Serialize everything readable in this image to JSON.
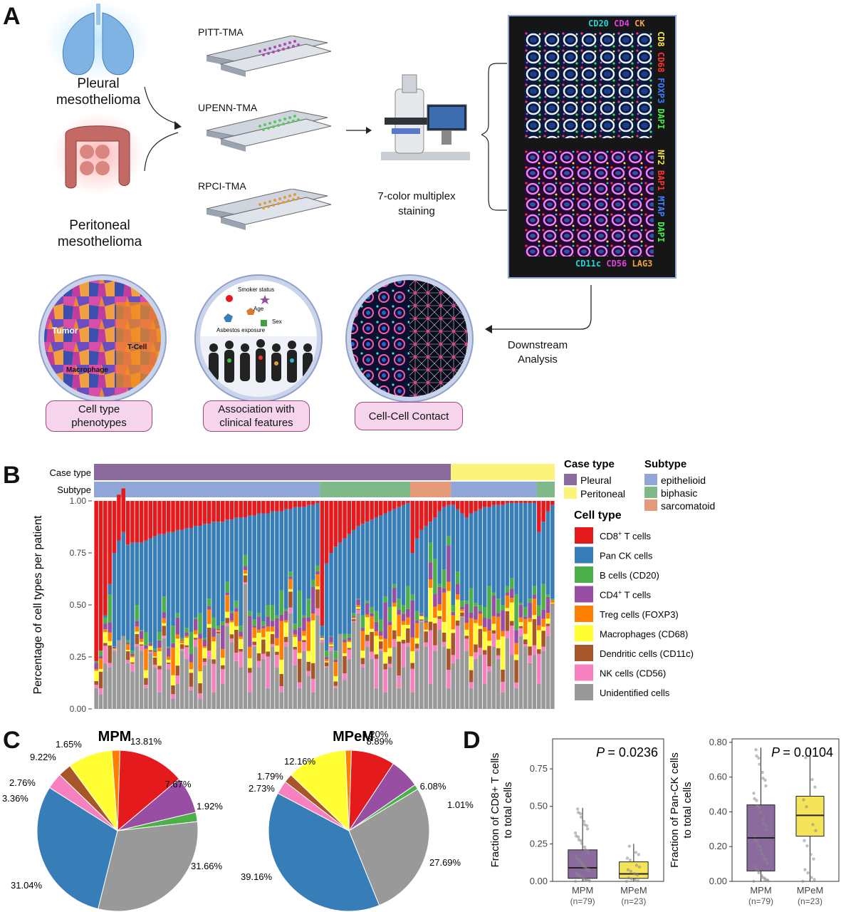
{
  "panels": {
    "a": "A",
    "b": "B",
    "c": "C",
    "d": "D"
  },
  "panel_a": {
    "pleural_label": [
      "Pleural",
      "mesothelioma"
    ],
    "peritoneal_label": [
      "Peritoneal",
      "mesothelioma"
    ],
    "tmas": [
      "PITT-TMA",
      "UPENN-TMA",
      "RPCI-TMA"
    ],
    "staining_label": [
      "7-color multiplex",
      "staining"
    ],
    "top_markers": {
      "top": [
        "CD20",
        "CD4",
        "CK"
      ],
      "side": [
        "CD8",
        "CD68",
        "FOXP3",
        "DAPI"
      ]
    },
    "bottom_markers": {
      "bottom": [
        "CD11c",
        "CD56",
        "LAG3"
      ],
      "side": [
        "NF2",
        "BAP1",
        "MTAP",
        "DAPI"
      ]
    },
    "marker_colors": {
      "CD20": "#22d3d3",
      "CD4": "#e040e0",
      "CK": "#f0a040",
      "CD8": "#f5e642",
      "CD68": "#ff3030",
      "FOXP3": "#3a7fff",
      "DAPI": "#44ee44",
      "NF2": "#f5e642",
      "BAP1": "#ff3030",
      "MTAP": "#3a7fff",
      "CD11c": "#22d3d3",
      "CD56": "#e040e0",
      "LAG3": "#f0a040"
    },
    "downstream_label": [
      "Downstream",
      "Analysis"
    ],
    "circle1_labels": [
      "Tumor",
      "T-Cell",
      "Macrophage"
    ],
    "circle2_labels": [
      "Smoker status",
      "Age",
      "Sex",
      "Asbestos exposure"
    ],
    "pills": [
      [
        "Cell type",
        "phenotypes"
      ],
      [
        "Association with",
        "clinical features"
      ],
      [
        "Cell-Cell Contact"
      ]
    ]
  },
  "chart_data": [
    {
      "type": "bar",
      "stacked": true,
      "ylabel": "Percentage of cell types per patient",
      "ylim": [
        0,
        1
      ],
      "yticks": [
        "0.00",
        "0.25",
        "0.50",
        "0.75",
        "1.00"
      ],
      "annotation_rows": {
        "case_type_label": "Case type",
        "subtype_label": "Subtype",
        "case_type": [
          {
            "value": "Pleural",
            "count": 79
          },
          {
            "value": "Peritoneal",
            "count": 23
          }
        ],
        "subtype": [
          {
            "value": "epithelioid",
            "count": 50
          },
          {
            "value": "biphasic",
            "count": 20
          },
          {
            "value": "sarcomatoid",
            "count": 9
          },
          {
            "value": "epithelioid",
            "count": 19
          },
          {
            "value": "biphasic",
            "count": 4
          }
        ]
      },
      "legends": {
        "case_type": {
          "title": "Case type",
          "items": [
            {
              "name": "Pleural",
              "color": "#8b6a9e"
            },
            {
              "name": "Peritoneal",
              "color": "#fcf47a"
            }
          ]
        },
        "subtype": {
          "title": "Subtype",
          "items": [
            {
              "name": "epithelioid",
              "color": "#8fa6d6"
            },
            {
              "name": "biphasic",
              "color": "#7fb98a"
            },
            {
              "name": "sarcomatoid",
              "color": "#e59b7a"
            }
          ]
        },
        "cell_type_title": "Cell type"
      },
      "series": [
        {
          "name": "Unidentified cells",
          "color": "#999999"
        },
        {
          "name": "NK cells (CD56)",
          "color": "#f781bf"
        },
        {
          "name": "Dendritic cells (CD11c)",
          "color": "#a65628"
        },
        {
          "name": "Macrophages (CD68)",
          "color": "#ffff33"
        },
        {
          "name": "Treg cells (FOXP3)",
          "color": "#ff7f00"
        },
        {
          "name": "CD4+ T cells",
          "color": "#984ea3"
        },
        {
          "name": "B cells (CD20)",
          "color": "#4daf4a"
        },
        {
          "name": "Pan CK cells",
          "color": "#377eb8"
        },
        {
          "name": "CD8+ T cells",
          "color": "#e41a1c"
        }
      ],
      "cd8_fraction": [
        0.77,
        0.72,
        0.55,
        0.4,
        0.25,
        0.22,
        0.21,
        0.21,
        0.2,
        0.2,
        0.2,
        0.19,
        0.18,
        0.17,
        0.16,
        0.16,
        0.15,
        0.15,
        0.14,
        0.14,
        0.13,
        0.13,
        0.12,
        0.12,
        0.11,
        0.11,
        0.1,
        0.1,
        0.1,
        0.09,
        0.09,
        0.08,
        0.08,
        0.08,
        0.07,
        0.07,
        0.06,
        0.06,
        0.06,
        0.05,
        0.05,
        0.05,
        0.04,
        0.04,
        0.03,
        0.03,
        0.03,
        0.02,
        0.02,
        0.01,
        0.6,
        0.3,
        0.25,
        0.22,
        0.2,
        0.18,
        0.16,
        0.14,
        0.12,
        0.11,
        0.1,
        0.09,
        0.08,
        0.07,
        0.06,
        0.05,
        0.04,
        0.03,
        0.02,
        0.01,
        0.25,
        0.18,
        0.14,
        0.12,
        0.1,
        0.08,
        0.05,
        0.03,
        0.02,
        0.02,
        0.04,
        0.06,
        0.08,
        0.06,
        0.05,
        0.04,
        0.03,
        0.03,
        0.02,
        0.02,
        0.02,
        0.01,
        0.01,
        0.01,
        0.01,
        0.01,
        0.01,
        0.01,
        0.15,
        0.1,
        0.05,
        0.02
      ],
      "panck_fraction": [
        0.0,
        0.0,
        0.01,
        0.05,
        0.45,
        0.48,
        0.5,
        0.46,
        0.52,
        0.3,
        0.42,
        0.44,
        0.5,
        0.54,
        0.47,
        0.3,
        0.55,
        0.45,
        0.4,
        0.52,
        0.48,
        0.5,
        0.44,
        0.42,
        0.55,
        0.36,
        0.46,
        0.5,
        0.48,
        0.3,
        0.44,
        0.4,
        0.52,
        0.18,
        0.46,
        0.5,
        0.48,
        0.52,
        0.44,
        0.45,
        0.5,
        0.38,
        0.48,
        0.3,
        0.56,
        0.4,
        0.52,
        0.45,
        0.36,
        0.3,
        0.05,
        0.42,
        0.4,
        0.5,
        0.44,
        0.46,
        0.48,
        0.4,
        0.35,
        0.44,
        0.38,
        0.42,
        0.45,
        0.5,
        0.4,
        0.46,
        0.36,
        0.44,
        0.48,
        0.4,
        0.2,
        0.35,
        0.4,
        0.44,
        0.1,
        0.2,
        0.35,
        0.3,
        0.15,
        0.48,
        0.3,
        0.42,
        0.4,
        0.36,
        0.44,
        0.46,
        0.48,
        0.38,
        0.42,
        0.45,
        0.48,
        0.4,
        0.36,
        0.44,
        0.48,
        0.5,
        0.46,
        0.4,
        0.35,
        0.3,
        0.4,
        0.45
      ],
      "unidentified_fraction": [
        0.1,
        0.07,
        0.22,
        0.2,
        0.28,
        0.33,
        0.35,
        0.22,
        0.18,
        0.3,
        0.28,
        0.1,
        0.27,
        0.2,
        0.08,
        0.34,
        0.19,
        0.05,
        0.12,
        0.28,
        0.24,
        0.09,
        0.3,
        0.05,
        0.21,
        0.24,
        0.08,
        0.36,
        0.12,
        0.4,
        0.32,
        0.23,
        0.2,
        0.6,
        0.08,
        0.3,
        0.2,
        0.24,
        0.1,
        0.3,
        0.2,
        0.08,
        0.3,
        0.46,
        0.21,
        0.1,
        0.28,
        0.16,
        0.08,
        0.45,
        0.32,
        0.2,
        0.28,
        0.1,
        0.36,
        0.14,
        0.24,
        0.42,
        0.46,
        0.2,
        0.3,
        0.24,
        0.1,
        0.28,
        0.08,
        0.2,
        0.3,
        0.1,
        0.2,
        0.3,
        0.08,
        0.28,
        0.42,
        0.3,
        0.12,
        0.28,
        0.38,
        0.3,
        0.1,
        0.22,
        0.24,
        0.44,
        0.28,
        0.1,
        0.24,
        0.26,
        0.12,
        0.18,
        0.3,
        0.24,
        0.08,
        0.34,
        0.26,
        0.1,
        0.35,
        0.3,
        0.22,
        0.26,
        0.12,
        0.28,
        0.35,
        0.5
      ]
    },
    {
      "type": "pie",
      "title": "MPM",
      "slices": [
        {
          "name": "CD8+ T cells",
          "value": 13.81,
          "label": "13.81%"
        },
        {
          "name": "CD4+ T cells",
          "value": 7.67,
          "label": "7.67%"
        },
        {
          "name": "B cells (CD20)",
          "value": 1.92,
          "label": "1.92%"
        },
        {
          "name": "Unidentified cells",
          "value": 31.66,
          "label": "31.66%"
        },
        {
          "name": "Pan CK cells",
          "value": 31.04,
          "label": "31.04%"
        },
        {
          "name": "NK cells (CD56)",
          "value": 3.36,
          "label": "3.36%"
        },
        {
          "name": "Dendritic cells (CD11c)",
          "value": 2.76,
          "label": "2.76%"
        },
        {
          "name": "Macrophages (CD68)",
          "value": 9.22,
          "label": "9.22%"
        },
        {
          "name": "Treg cells (FOXP3)",
          "value": 1.65,
          "label": "1.65%"
        }
      ]
    },
    {
      "type": "pie",
      "title": "MPeM",
      "slices": [
        {
          "name": "CD8+ T cells",
          "value": 8.89,
          "label": "8.89%"
        },
        {
          "name": "CD4+ T cells",
          "value": 6.08,
          "label": "6.08%"
        },
        {
          "name": "B cells (CD20)",
          "value": 1.01,
          "label": "1.01%"
        },
        {
          "name": "Unidentified cells",
          "value": 27.69,
          "label": "27.69%"
        },
        {
          "name": "Pan CK cells",
          "value": 39.16,
          "label": "39.16%"
        },
        {
          "name": "NK cells (CD56)",
          "value": 2.73,
          "label": "2.73%"
        },
        {
          "name": "Dendritic cells (CD11c)",
          "value": 1.79,
          "label": "1.79%"
        },
        {
          "name": "Macrophages (CD68)",
          "value": 12.16,
          "label": "12.16%"
        },
        {
          "name": "Treg cells (FOXP3)",
          "value": 1.2,
          "label": "1.20%"
        }
      ]
    },
    {
      "type": "boxplot",
      "ylabel": [
        "Fraction of CD8+ T cells",
        "to total cells"
      ],
      "ylim": [
        0,
        0.95
      ],
      "yticks": [
        "0.00",
        "0.25",
        "0.50",
        "0.75"
      ],
      "pvalue": "= 0.0236",
      "groups": [
        {
          "name": "MPM",
          "n": "(n=79)",
          "color": "#8b6a9e",
          "min": 0.0,
          "q1": 0.02,
          "median": 0.09,
          "q3": 0.21,
          "max": 0.49
        },
        {
          "name": "MPeM",
          "n": "(n=23)",
          "color": "#f5e35a",
          "min": 0.0,
          "q1": 0.02,
          "median": 0.05,
          "q3": 0.13,
          "max": 0.25
        }
      ]
    },
    {
      "type": "boxplot",
      "ylabel": [
        "Fraction of Pan-CK  cells",
        "to total cells"
      ],
      "ylim": [
        0,
        0.82
      ],
      "yticks": [
        "0.00",
        "0.20",
        "0.40",
        "0.60",
        "0.80"
      ],
      "pvalue": "= 0.0104",
      "groups": [
        {
          "name": "MPM",
          "n": "(n=79)",
          "color": "#8b6a9e",
          "min": 0.0,
          "q1": 0.06,
          "median": 0.25,
          "q3": 0.44,
          "max": 0.77
        },
        {
          "name": "MPeM",
          "n": "(n=23)",
          "color": "#f5e35a",
          "min": 0.0,
          "q1": 0.26,
          "median": 0.38,
          "q3": 0.49,
          "max": 0.76
        }
      ]
    }
  ],
  "series_colors": {
    "CD8+ T cells": "#e41a1c",
    "Pan CK cells": "#377eb8",
    "B cells (CD20)": "#4daf4a",
    "CD4+ T cells": "#984ea3",
    "Treg cells (FOXP3)": "#ff7f00",
    "Macrophages (CD68)": "#ffff33",
    "Dendritic cells (CD11c)": "#a65628",
    "NK cells (CD56)": "#f781bf",
    "Unidentified cells": "#999999"
  },
  "legend_cell_types": [
    {
      "name": "CD8",
      "sup": "+",
      "rest": " T cells"
    },
    {
      "name": "Pan CK cells",
      "sup": "",
      "rest": ""
    },
    {
      "name": "B cells (CD20)",
      "sup": "",
      "rest": ""
    },
    {
      "name": "CD4",
      "sup": "+",
      "rest": " T cells"
    },
    {
      "name": "Treg cells (FOXP3)",
      "sup": "",
      "rest": ""
    },
    {
      "name": "Macrophages (CD68)",
      "sup": "",
      "rest": ""
    },
    {
      "name": "Dendritic cells (CD11c)",
      "sup": "",
      "rest": ""
    },
    {
      "name": "NK cells (CD56)",
      "sup": "",
      "rest": ""
    },
    {
      "name": "Unidentified cells",
      "sup": "",
      "rest": ""
    }
  ]
}
